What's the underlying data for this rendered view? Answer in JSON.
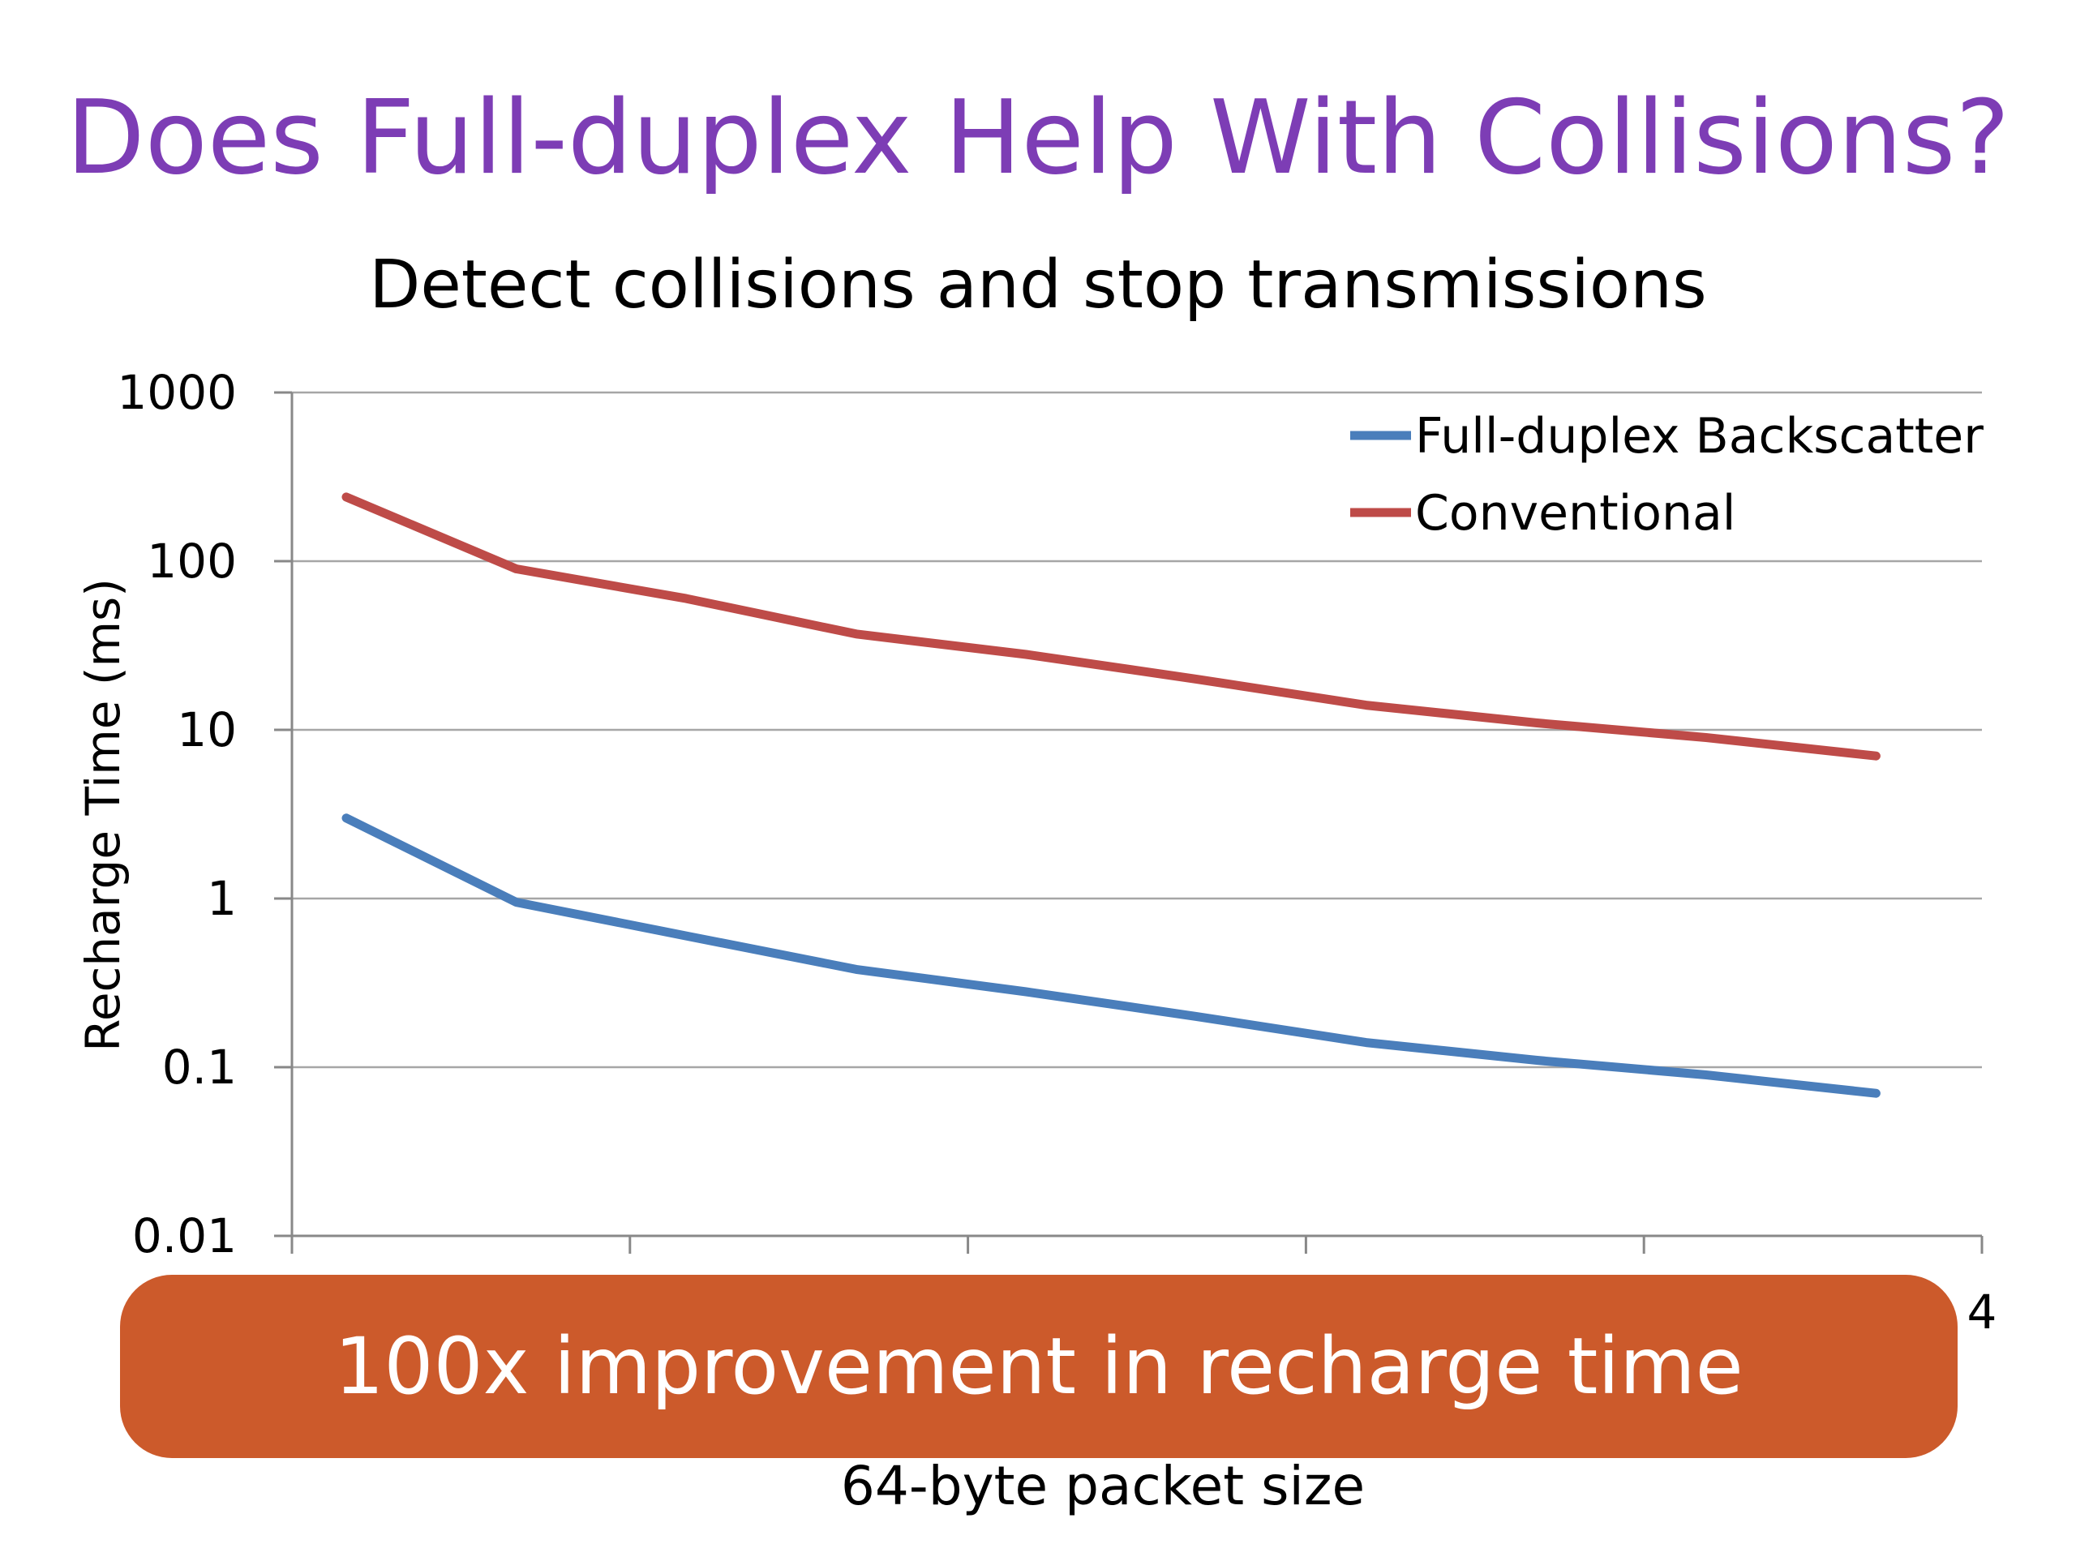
{
  "slide": {
    "title": "Does Full-duplex Help With Collisions?",
    "subtitle": "Detect collisions and stop transmissions"
  },
  "callout": {
    "text": "100x improvement in recharge time",
    "color": "#cc5a2b"
  },
  "chart_data": {
    "type": "line",
    "title": "",
    "xlabel": "64-byte packet size",
    "ylabel": "Recharge Time (ms)",
    "yscale": "log",
    "ylim": [
      0.01,
      1000
    ],
    "yticks": [
      "0.01",
      "0.1",
      "1",
      "10",
      "100",
      "1000"
    ],
    "visible_x_tick_label": "4",
    "grid": true,
    "legend_position": "top-right",
    "x": [
      1,
      2,
      3,
      4,
      5,
      6,
      7,
      8,
      9,
      10
    ],
    "series": [
      {
        "name": "Full-duplex Backscatter",
        "color": "#4a7ebb",
        "values": [
          3,
          0.95,
          0.6,
          0.38,
          0.28,
          0.2,
          0.14,
          0.11,
          0.09,
          0.07
        ]
      },
      {
        "name": "Conventional",
        "color": "#be4b48",
        "values": [
          240,
          90,
          60,
          37,
          28,
          20,
          14,
          11,
          9,
          7
        ]
      }
    ]
  }
}
